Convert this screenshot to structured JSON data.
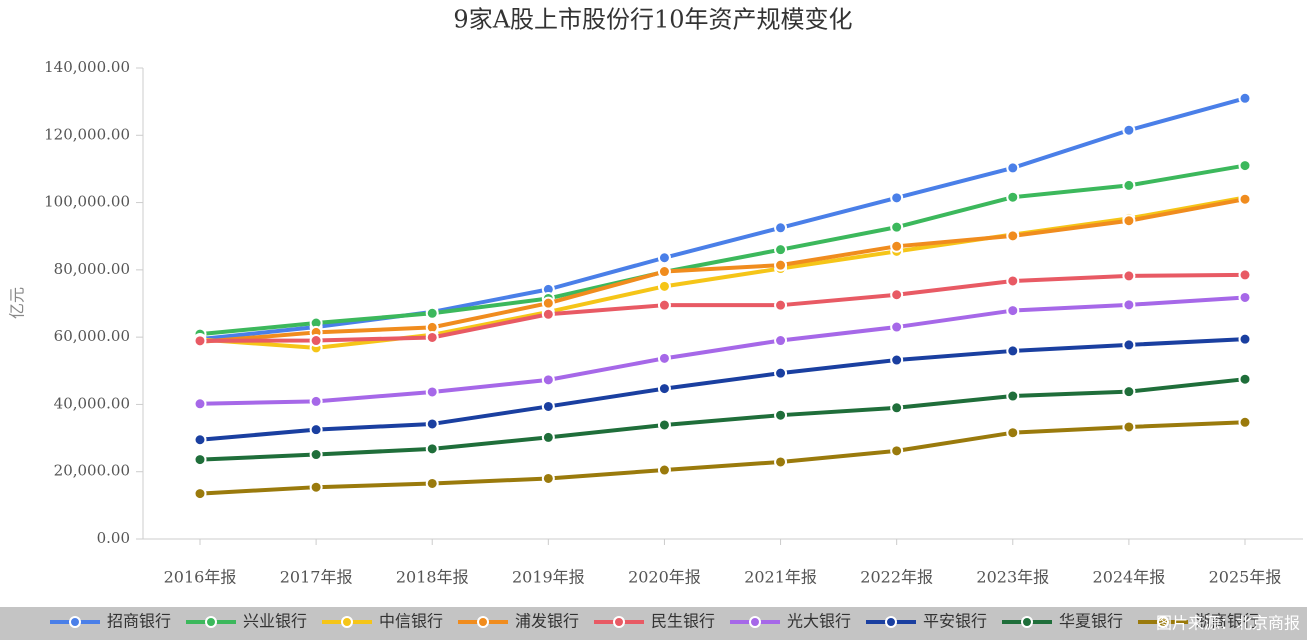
{
  "chart_data": {
    "type": "line",
    "title": "9家A股上市股份行10年资产规模变化",
    "y_label": "亿元",
    "source_note": "图片来源：北京商报",
    "categories": [
      "2016年报",
      "2017年报",
      "2018年报",
      "2019年报",
      "2020年报",
      "2021年报",
      "2022年报",
      "2023年报",
      "2024年报",
      "2025年报"
    ],
    "ylim": [
      0,
      140000
    ],
    "yticks": [
      {
        "value": 0,
        "label": "0.00"
      },
      {
        "value": 20000,
        "label": "20,000.00"
      },
      {
        "value": 40000,
        "label": "40,000.00"
      },
      {
        "value": 60000,
        "label": "60,000.00"
      },
      {
        "value": 80000,
        "label": "80,000.00"
      },
      {
        "value": 100000,
        "label": "100,000.00"
      },
      {
        "value": 120000,
        "label": "120,000.00"
      },
      {
        "value": 140000,
        "label": "140,000.00"
      }
    ],
    "series": [
      {
        "name": "招商银行",
        "color": "#4a7fe8",
        "values": [
          59400,
          63000,
          67500,
          74200,
          83600,
          92500,
          101400,
          110300,
          121500,
          131000
        ]
      },
      {
        "name": "兴业银行",
        "color": "#3cb85c",
        "values": [
          60900,
          64200,
          67100,
          71500,
          79400,
          86000,
          92700,
          101600,
          105100,
          111000
        ]
      },
      {
        "name": "中信银行",
        "color": "#f5c518",
        "values": [
          59300,
          56800,
          60700,
          67500,
          75100,
          80400,
          85500,
          90500,
          95300,
          101500
        ]
      },
      {
        "name": "浦发银行",
        "color": "#f08c1e",
        "values": [
          58600,
          61400,
          62900,
          70100,
          79500,
          81400,
          87000,
          90100,
          94600,
          101000
        ]
      },
      {
        "name": "民生银行",
        "color": "#e85a64",
        "values": [
          58900,
          59000,
          59900,
          66800,
          69500,
          69500,
          72600,
          76700,
          78200,
          78500
        ]
      },
      {
        "name": "光大银行",
        "color": "#a668e8",
        "values": [
          40200,
          40900,
          43700,
          47300,
          53700,
          59000,
          63000,
          67900,
          69600,
          71800
        ]
      },
      {
        "name": "平安银行",
        "color": "#1a3fa0",
        "values": [
          29500,
          32500,
          34200,
          39400,
          44700,
          49300,
          53200,
          55900,
          57700,
          59400
        ]
      },
      {
        "name": "华夏银行",
        "color": "#1f6e3a",
        "values": [
          23600,
          25100,
          26800,
          30200,
          33900,
          36800,
          39000,
          42500,
          43800,
          47500
        ]
      },
      {
        "name": "浙商银行",
        "color": "#9a7a0c",
        "values": [
          13500,
          15400,
          16500,
          18000,
          20500,
          22900,
          26200,
          31600,
          33300,
          34700
        ]
      }
    ]
  }
}
